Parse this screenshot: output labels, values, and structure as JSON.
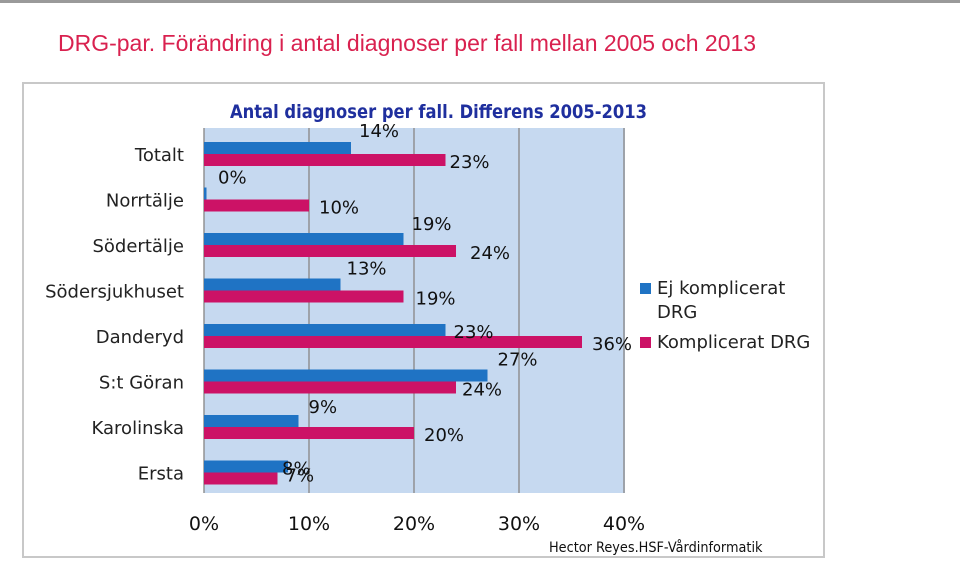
{
  "slide_title": "DRG-par. Förändring i antal diagnoser per fall mellan 2005 och 2013",
  "credit": "Hector  Reyes.HSF-Vårdinformatik",
  "colors": {
    "series_a": "#1f73c4",
    "series_b": "#cc1266",
    "plot_bg": "#c6d9f0",
    "grid": "#8c8c8c"
  },
  "chart_data": {
    "type": "bar",
    "orientation": "horizontal",
    "title": "Antal diagnoser per fall. Differens 2005-2013",
    "categories": [
      "Totalt",
      "Norrtälje",
      "Södertälje",
      "Södersjukhuset",
      "Danderyd",
      "S:t Göran",
      "Karolinska",
      "Ersta"
    ],
    "series": [
      {
        "name": "Ej komplicerat DRG",
        "values": [
          14,
          0,
          19,
          13,
          23,
          27,
          9,
          8
        ],
        "labels": [
          "14%",
          "0%",
          "19%",
          "13%",
          "23%",
          "27%",
          "9%",
          "8%"
        ]
      },
      {
        "name": "Komplicerat DRG",
        "values": [
          23,
          10,
          24,
          19,
          36,
          24,
          20,
          7
        ],
        "labels": [
          "23%",
          "10%",
          "24%",
          "19%",
          "36%",
          "24%",
          "20%",
          "7%"
        ]
      }
    ],
    "x_ticks": [
      "0%",
      "10%",
      "20%",
      "30%",
      "40%"
    ],
    "xlim": [
      0,
      40
    ],
    "legend": "right",
    "grid": true
  }
}
